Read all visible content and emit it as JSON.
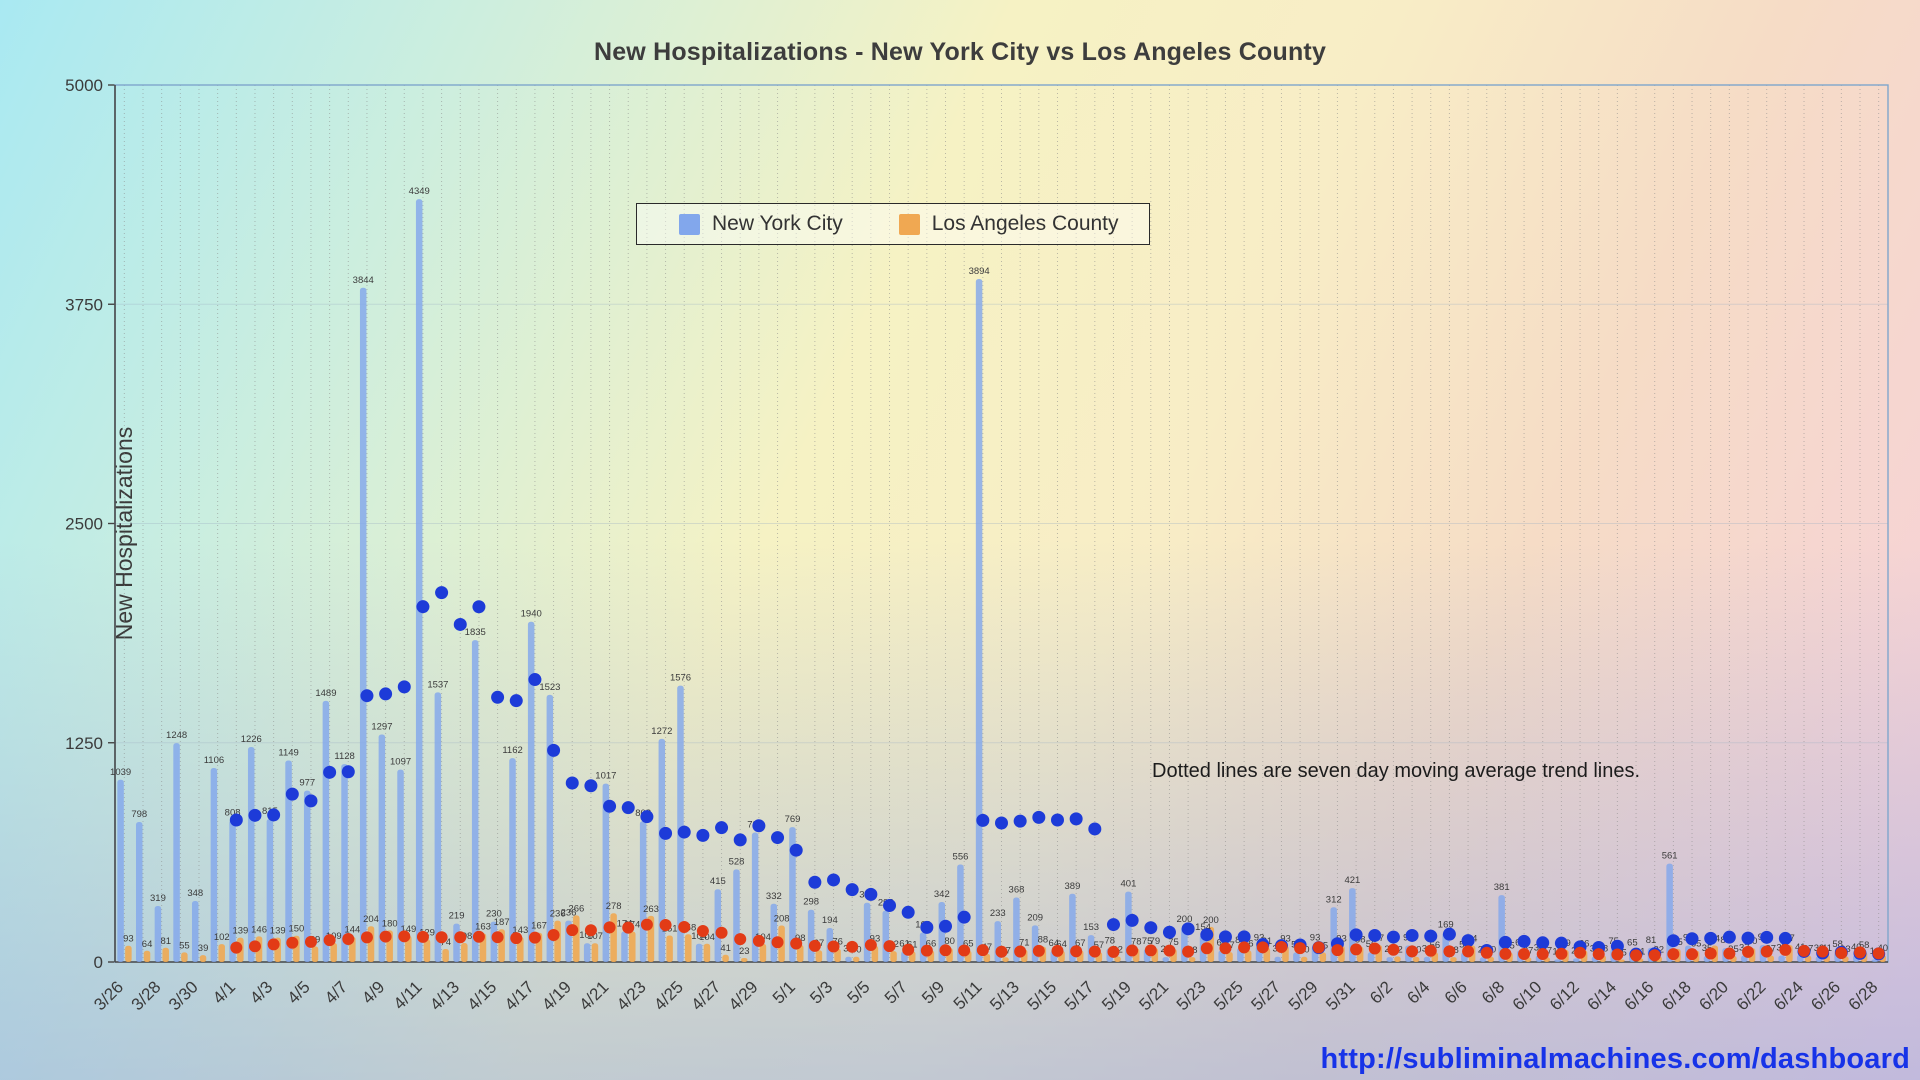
{
  "title": "New Hospitalizations - New York City vs Los Angeles County",
  "ylabel": "New Hospitalizations",
  "annotation": "Dotted lines are seven day moving average trend lines.",
  "footer_url": "http://subliminalmachines.com/dashboard",
  "legend": {
    "items": [
      {
        "label": "New York City",
        "color": "#82a7ec"
      },
      {
        "label": "Los Angeles County",
        "color": "#f0a852"
      }
    ]
  },
  "palette": {
    "axis_text": "#3b3b3b",
    "url_color": "#1733e8",
    "grid_color": "#8a8a8a",
    "frame_color": "#7fa6cc"
  },
  "chart_data": {
    "type": "bar",
    "title": "New Hospitalizations - New York City vs Los Angeles County",
    "xlabel": "",
    "ylabel": "New Hospitalizations",
    "ylim": [
      0,
      5000
    ],
    "yticks": [
      0,
      1250,
      2500,
      3750,
      5000
    ],
    "x_tick_step": 2,
    "grid": "vertical-dotted",
    "legend_position": "top-center",
    "trend": "seven day moving average (dotted point series per bar series)",
    "categories": [
      "3/26",
      "3/27",
      "3/28",
      "3/29",
      "3/30",
      "3/31",
      "4/1",
      "4/2",
      "4/3",
      "4/4",
      "4/5",
      "4/6",
      "4/7",
      "4/8",
      "4/9",
      "4/10",
      "4/11",
      "4/12",
      "4/13",
      "4/14",
      "4/15",
      "4/16",
      "4/17",
      "4/18",
      "4/19",
      "4/20",
      "4/21",
      "4/22",
      "4/23",
      "4/24",
      "4/25",
      "4/26",
      "4/27",
      "4/28",
      "4/29",
      "4/30",
      "5/1",
      "5/2",
      "5/3",
      "5/4",
      "5/5",
      "5/6",
      "5/7",
      "5/8",
      "5/9",
      "5/10",
      "5/11",
      "5/12",
      "5/13",
      "5/14",
      "5/15",
      "5/16",
      "5/17",
      "5/18",
      "5/19",
      "5/20",
      "5/21",
      "5/22",
      "5/23",
      "5/24",
      "5/25",
      "5/26",
      "5/27",
      "5/28",
      "5/29",
      "5/30",
      "5/31",
      "6/1",
      "6/2",
      "6/3",
      "6/4",
      "6/5",
      "6/6",
      "6/7",
      "6/8",
      "6/9",
      "6/10",
      "6/11",
      "6/12",
      "6/13",
      "6/14",
      "6/15",
      "6/16",
      "6/17",
      "6/18",
      "6/19",
      "6/20",
      "6/21",
      "6/22",
      "6/23",
      "6/24",
      "6/25",
      "6/26",
      "6/27",
      "6/28"
    ],
    "series": [
      {
        "name": "New York City",
        "color": "#82a7ec",
        "trend_color": "#1d3bd8",
        "values": [
          1039,
          798,
          319,
          1248,
          348,
          1106,
          808,
          1226,
          815,
          1149,
          977,
          1489,
          1128,
          3844,
          1297,
          1097,
          4349,
          1537,
          219,
          1835,
          230,
          1162,
          1940,
          1523,
          236,
          107,
          1017,
          174,
          803,
          1272,
          1576,
          104,
          415,
          528,
          738,
          332,
          769,
          298,
          194,
          30,
          338,
          293,
          61,
          169,
          342,
          556,
          3894,
          233,
          368,
          209,
          64,
          389,
          153,
          78,
          401,
          75,
          28,
          200,
          154,
          66,
          81,
          93,
          30,
          55,
          93,
          312,
          421,
          56,
          28,
          94,
          30,
          169,
          55,
          27,
          381,
          66,
          38,
          15,
          21,
          32,
          75,
          65,
          81,
          561,
          94,
          35,
          80,
          37,
          97,
          37,
          41,
          33,
          58,
          40,
          16
        ]
      },
      {
        "name": "Los Angeles County",
        "color": "#f0a852",
        "trend_color": "#e23b16",
        "values": [
          93,
          64,
          81,
          55,
          39,
          102,
          139,
          146,
          139,
          150,
          89,
          109,
          144,
          204,
          180,
          149,
          129,
          74,
          108,
          163,
          187,
          143,
          167,
          236,
          266,
          107,
          278,
          174,
          263,
          151,
          158,
          104,
          41,
          23,
          104,
          208,
          98,
          67,
          76,
          30,
          93,
          62,
          61,
          66,
          80,
          65,
          47,
          27,
          71,
          88,
          64,
          67,
          57,
          32,
          78,
          79,
          75,
          28,
          200,
          57,
          66,
          81,
          93,
          30,
          55,
          93,
          88,
          97,
          32,
          30,
          56,
          28,
          94,
          30,
          55,
          27,
          27,
          69,
          66,
          38,
          15,
          21,
          32,
          75,
          65,
          94,
          35,
          80,
          37,
          97,
          37,
          41,
          33,
          58,
          40
        ]
      }
    ]
  }
}
